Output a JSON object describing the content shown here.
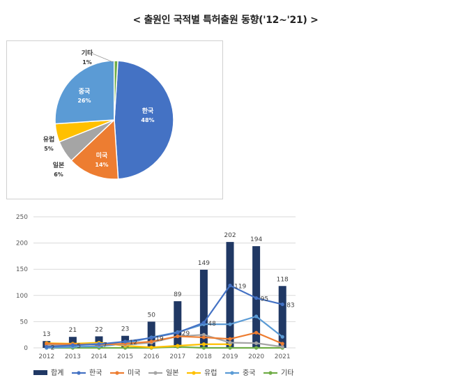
{
  "title": "< 출원인 국적별 특허출원 동향('12~'21) >",
  "chart_data": [
    {
      "type": "pie",
      "slices": [
        {
          "label": "한국",
          "value": 48,
          "display": "48%",
          "color": "#4472C4"
        },
        {
          "label": "미국",
          "value": 14,
          "display": "14%",
          "color": "#ED7D31"
        },
        {
          "label": "일본",
          "value": 6,
          "display": "6%",
          "color": "#A5A5A5"
        },
        {
          "label": "유럽",
          "value": 5,
          "display": "5%",
          "color": "#FFC000"
        },
        {
          "label": "중국",
          "value": 26,
          "display": "26%",
          "color": "#5B9BD5"
        },
        {
          "label": "기타",
          "value": 1,
          "display": "1%",
          "color": "#70AD47"
        }
      ]
    },
    {
      "type": "bar+line",
      "categories": [
        "2012",
        "2013",
        "2014",
        "2015",
        "2016",
        "2017",
        "2018",
        "2019",
        "2020",
        "2021"
      ],
      "ylim": [
        0,
        250
      ],
      "yticks": [
        0,
        50,
        100,
        150,
        200,
        250
      ],
      "bars": {
        "name": "합계",
        "color": "#203864",
        "values": [
          13,
          21,
          22,
          23,
          50,
          89,
          149,
          202,
          194,
          118
        ]
      },
      "lines": [
        {
          "name": "한국",
          "color": "#4472C4",
          "values": [
            2,
            5,
            7,
            12,
            19,
            29,
            48,
            119,
            95,
            83
          ],
          "labels": [
            "2",
            "5",
            "7",
            "12",
            "19",
            "29",
            "48",
            "119",
            "95",
            "83"
          ]
        },
        {
          "name": "미국",
          "color": "#ED7D31",
          "values": [
            8,
            7,
            6,
            8,
            12,
            22,
            20,
            17,
            29,
            8
          ]
        },
        {
          "name": "일본",
          "color": "#A5A5A5",
          "values": [
            5,
            6,
            8,
            6,
            10,
            22,
            25,
            10,
            9,
            2
          ]
        },
        {
          "name": "유럽",
          "color": "#FFC000",
          "values": [
            9,
            8,
            10,
            4,
            1,
            4,
            7,
            7,
            null,
            null
          ]
        },
        {
          "name": "중국",
          "color": "#5B9BD5",
          "values": [
            0,
            2,
            3,
            8,
            20,
            30,
            45,
            45,
            60,
            21
          ]
        },
        {
          "name": "기타",
          "color": "#70AD47",
          "values": [
            0,
            0,
            0,
            0,
            0,
            2,
            0,
            0,
            0,
            0
          ]
        }
      ]
    }
  ]
}
